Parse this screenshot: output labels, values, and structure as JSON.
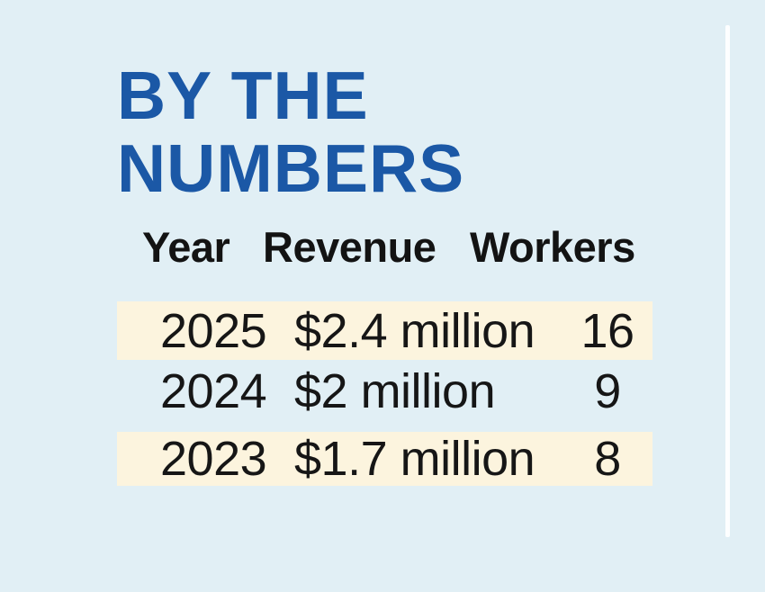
{
  "page": {
    "background_color": "#e1eff5",
    "divider_color": "#fdfeff",
    "title_color": "#1b58a6",
    "row_highlight_color": "#fcf4de",
    "text_color": "#131313"
  },
  "title": {
    "line1": "BY THE",
    "line2": "NUMBERS"
  },
  "table": {
    "headers": {
      "year": "Year",
      "revenue": "Revenue",
      "workers": "Workers"
    },
    "rows": [
      {
        "year": "2025",
        "revenue": "$2.4 million",
        "workers": "16"
      },
      {
        "year": "2024",
        "revenue": "$2 million",
        "workers": "9"
      },
      {
        "year": "2023",
        "revenue": "$1.7 million",
        "workers": "8"
      }
    ]
  },
  "chart_data": {
    "type": "table",
    "title": "BY THE NUMBERS",
    "columns": [
      "Year",
      "Revenue",
      "Workers"
    ],
    "rows": [
      [
        "2025",
        "$2.4 million",
        "16"
      ],
      [
        "2024",
        "$2 million",
        "9"
      ],
      [
        "2023",
        "$1.7 million",
        "8"
      ]
    ],
    "series": [
      {
        "name": "Revenue ($ million)",
        "x": [
          2025,
          2024,
          2023
        ],
        "values": [
          2.4,
          2.0,
          1.7
        ]
      },
      {
        "name": "Workers",
        "x": [
          2025,
          2024,
          2023
        ],
        "values": [
          16,
          9,
          8
        ]
      }
    ],
    "layout": {
      "highlighted_rows": [
        0,
        2
      ],
      "grid": false,
      "legend": "none"
    }
  }
}
